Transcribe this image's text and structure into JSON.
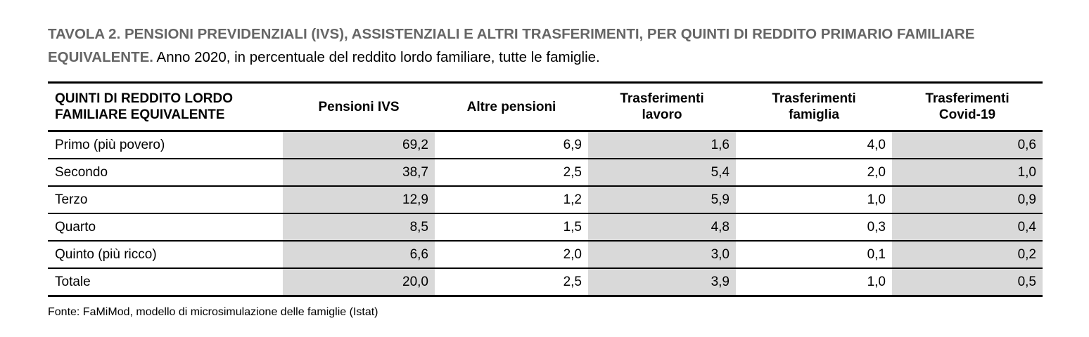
{
  "title": {
    "bold": "TAVOLA 2. PENSIONI PREVIDENZIALI (IVS), ASSISTENZIALI E ALTRI TRASFERIMENTI, PER QUINTI DI REDDITO PRIMARIO FAMILIARE EQUIVALENTE.",
    "regular": "Anno 2020, in percentuale del reddito lordo familiare, tutte le famiglie."
  },
  "table": {
    "columns": [
      {
        "label": "QUINTI DI REDDITO LORDO\nFAMILIARE EQUIVALENTE",
        "align": "left",
        "shaded": false
      },
      {
        "label": "Pensioni IVS",
        "align": "center",
        "shaded": true
      },
      {
        "label": "Altre pensioni",
        "align": "center",
        "shaded": false
      },
      {
        "label": "Trasferimenti\nlavoro",
        "align": "center",
        "shaded": true
      },
      {
        "label": "Trasferimenti\nfamiglia",
        "align": "center",
        "shaded": false
      },
      {
        "label": "Trasferimenti\nCovid-19",
        "align": "center",
        "shaded": true
      }
    ],
    "rows": [
      {
        "label": "Primo (più povero)",
        "values": [
          "69,2",
          "6,9",
          "1,6",
          "4,0",
          "0,6"
        ]
      },
      {
        "label": "Secondo",
        "values": [
          "38,7",
          "2,5",
          "5,4",
          "2,0",
          "1,0"
        ]
      },
      {
        "label": "Terzo",
        "values": [
          "12,9",
          "1,2",
          "5,9",
          "1,0",
          "0,9"
        ]
      },
      {
        "label": "Quarto",
        "values": [
          "8,5",
          "1,5",
          "4,8",
          "0,3",
          "0,4"
        ]
      },
      {
        "label": "Quinto (più ricco)",
        "values": [
          "6,6",
          "2,0",
          "3,0",
          "0,1",
          "0,2"
        ]
      },
      {
        "label": "Totale",
        "values": [
          "20,0",
          "2,5",
          "3,9",
          "1,0",
          "0,5"
        ]
      }
    ]
  },
  "footer": {
    "source": "Fonte: FaMiMod, modello di microsimulazione delle famiglie (Istat)"
  },
  "colors": {
    "title_gray": "#666666",
    "cell_shade": "#d9d9d9",
    "border": "#000000",
    "background": "#ffffff"
  }
}
